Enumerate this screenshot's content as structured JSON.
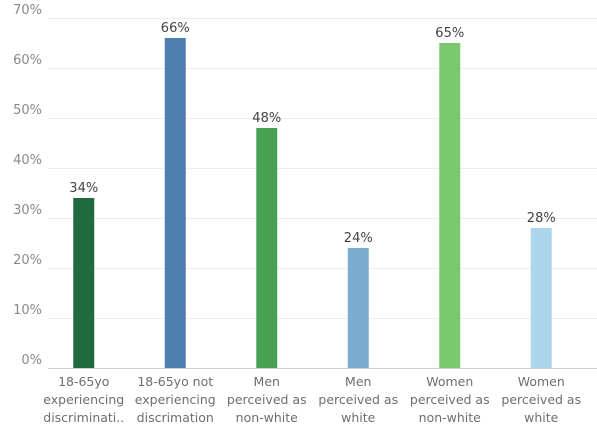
{
  "chart_data": {
    "type": "bar",
    "categories": [
      [
        "18-65yo",
        "experiencing",
        "discriminati.."
      ],
      [
        "18-65yo not",
        "experiencing",
        "discrimation"
      ],
      [
        "Men",
        "perceived as",
        "non-white"
      ],
      [
        "Men",
        "perceived as",
        "white"
      ],
      [
        "Women",
        "perceived as",
        "non-white"
      ],
      [
        "Women",
        "perceived as",
        "white"
      ]
    ],
    "values": [
      34,
      66,
      48,
      24,
      65,
      28
    ],
    "value_labels": [
      "34%",
      "66%",
      "48%",
      "24%",
      "65%",
      "28%"
    ],
    "colors": [
      "#1f6b3f",
      "#4c7fae",
      "#48a153",
      "#79aed1",
      "#7bc86f",
      "#acd6ec"
    ],
    "yticks": [
      0,
      10,
      20,
      30,
      40,
      50,
      60,
      70
    ],
    "ytick_labels": [
      "0%",
      "10%",
      "20%",
      "30%",
      "40%",
      "50%",
      "60%",
      "70%"
    ],
    "ylim": [
      0,
      70
    ],
    "grid": true
  }
}
